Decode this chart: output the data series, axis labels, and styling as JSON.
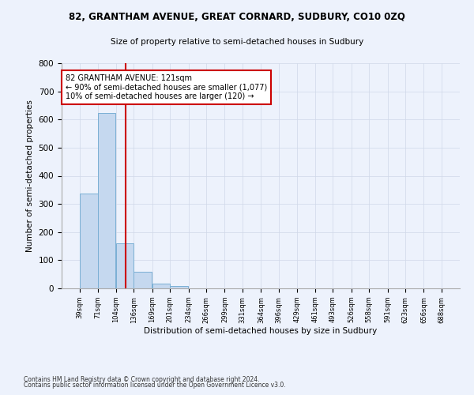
{
  "title": "82, GRANTHAM AVENUE, GREAT CORNARD, SUDBURY, CO10 0ZQ",
  "subtitle": "Size of property relative to semi-detached houses in Sudbury",
  "xlabel": "Distribution of semi-detached houses by size in Sudbury",
  "ylabel": "Number of semi-detached properties",
  "footnote1": "Contains HM Land Registry data © Crown copyright and database right 2024.",
  "footnote2": "Contains public sector information licensed under the Open Government Licence v3.0.",
  "bin_edges": [
    39,
    71,
    104,
    136,
    169,
    201,
    234,
    266,
    299,
    331,
    364,
    396,
    429,
    461,
    493,
    526,
    558,
    591,
    623,
    656,
    688
  ],
  "bin_counts": [
    338,
    623,
    161,
    59,
    16,
    9,
    0,
    0,
    0,
    0,
    0,
    0,
    0,
    0,
    0,
    0,
    0,
    0,
    0,
    0
  ],
  "bar_color": "#c5d8ef",
  "bar_edge_color": "#7aafd4",
  "property_size": 121,
  "vline_color": "#cc0000",
  "annotation_text": "82 GRANTHAM AVENUE: 121sqm\n← 90% of semi-detached houses are smaller (1,077)\n10% of semi-detached houses are larger (120) →",
  "annotation_box_color": "#ffffff",
  "annotation_box_edge": "#cc0000",
  "grid_color": "#d0d8e8",
  "background_color": "#edf2fc",
  "ylim": [
    0,
    800
  ],
  "yticks": [
    0,
    100,
    200,
    300,
    400,
    500,
    600,
    700,
    800
  ]
}
